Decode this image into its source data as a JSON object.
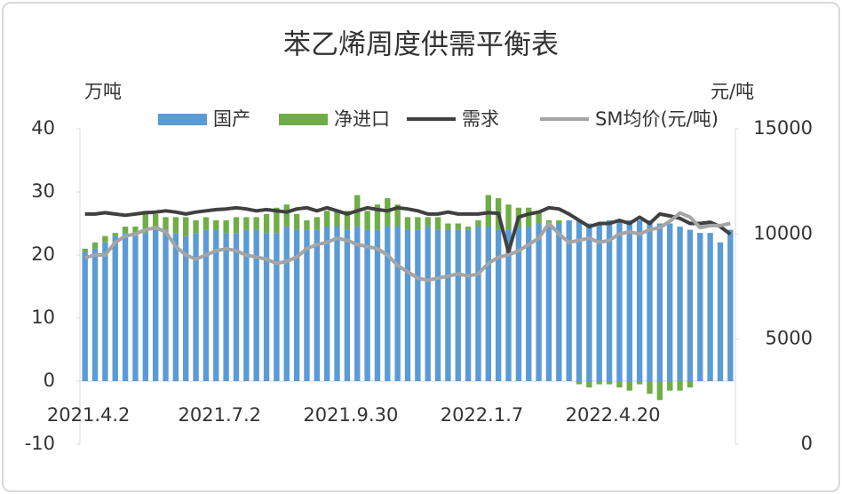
{
  "chart_data": {
    "type": "bar",
    "title": "苯乙烯周度供需平衡表",
    "y_label": "万吨",
    "y2_label": "元/吨",
    "categories": [
      "2021.4.2",
      null,
      null,
      null,
      null,
      null,
      null,
      null,
      null,
      null,
      null,
      null,
      null,
      "2021.7.2",
      null,
      null,
      null,
      null,
      null,
      null,
      null,
      null,
      null,
      null,
      null,
      null,
      "2021.9.30",
      null,
      null,
      null,
      null,
      null,
      null,
      null,
      null,
      null,
      null,
      null,
      null,
      "2022.1.7",
      null,
      null,
      null,
      null,
      null,
      null,
      null,
      null,
      null,
      null,
      null,
      null,
      "2022.4.20",
      null,
      null,
      null,
      null,
      null,
      null,
      null,
      null,
      null,
      null,
      null,
      null
    ],
    "series": [
      {
        "name": "国产",
        "type": "bar",
        "color": "#5b9bd5",
        "values": [
          20.5,
          21,
          22,
          23,
          23.5,
          23,
          23.5,
          24,
          24,
          23.5,
          23,
          23.5,
          24,
          24,
          23.5,
          23.5,
          24,
          24,
          23.5,
          23.5,
          24.5,
          24,
          24,
          24,
          24.5,
          24.5,
          24,
          24.5,
          24,
          24,
          24.5,
          24.5,
          24,
          24,
          24.5,
          24,
          24,
          24,
          24,
          24.5,
          24.5,
          24,
          24,
          24.5,
          24.5,
          25,
          24.5,
          25,
          25.5,
          25.5,
          25,
          25,
          25.5,
          25.5,
          25.5,
          25.5,
          25.5,
          25,
          25,
          24.5,
          24,
          23.5,
          23.5,
          22,
          24
        ]
      },
      {
        "name": "净进口",
        "type": "bar",
        "color": "#70ad47",
        "values": [
          0.5,
          1,
          1,
          0.5,
          1,
          1.5,
          3.5,
          2.5,
          2,
          2.5,
          3,
          2,
          2,
          1.5,
          2,
          2.5,
          2,
          2,
          3,
          4,
          3.5,
          2.5,
          1.5,
          2,
          2.5,
          2.5,
          3,
          5,
          3,
          4,
          4.5,
          3.5,
          2,
          2,
          1.5,
          2,
          1,
          1,
          0.5,
          1,
          5,
          5,
          4,
          3,
          3,
          2,
          1,
          0.5,
          0,
          -0.5,
          -1,
          -0.5,
          -0.5,
          -1,
          -1.5,
          -0.5,
          -2,
          -3,
          -1.5,
          -1.5,
          -1,
          0,
          0,
          0,
          0
        ]
      },
      {
        "name": "需求",
        "type": "line",
        "color": "#404040",
        "values": [
          26.5,
          26.5,
          26.7,
          26.5,
          26.3,
          26.5,
          26.7,
          26.8,
          27,
          26.8,
          26.5,
          26.8,
          27,
          27.2,
          27.3,
          27.5,
          27.3,
          27,
          27.2,
          27,
          26.8,
          27.3,
          27.5,
          27,
          27.5,
          27,
          26.5,
          27,
          27.5,
          27.2,
          27,
          27.5,
          27.3,
          27,
          26.5,
          26.5,
          26.8,
          26.5,
          26.5,
          26.5,
          26.7,
          26.6,
          20.5,
          26,
          26.5,
          26.8,
          27.5,
          27.3,
          26.5,
          25.5,
          24.5,
          25,
          25,
          25.5,
          25,
          26,
          25,
          26.5,
          26.2,
          25.8,
          25,
          25,
          25.2,
          24.5,
          23.3
        ]
      },
      {
        "name": "SM均价(元/吨)",
        "type": "line",
        "axis": "y2",
        "color": "#a5a5a5",
        "values": [
          8870,
          9000,
          9000,
          9600,
          9900,
          10000,
          10200,
          10300,
          10100,
          9400,
          9000,
          8800,
          9000,
          9200,
          9300,
          9200,
          9000,
          8900,
          8800,
          8600,
          8700,
          8900,
          9300,
          9500,
          9600,
          9800,
          9700,
          9500,
          9400,
          9300,
          9000,
          8500,
          8200,
          7900,
          7800,
          7900,
          8000,
          8100,
          8000,
          8100,
          8600,
          8900,
          9000,
          9200,
          9500,
          9800,
          10500,
          10000,
          9600,
          9700,
          9800,
          9600,
          9700,
          10000,
          10100,
          10000,
          10200,
          10300,
          10600,
          11000,
          10800,
          10300,
          10400,
          10400,
          10500
        ]
      }
    ],
    "ylim": [
      -10,
      40
    ],
    "yticks": [
      -10,
      0,
      10,
      20,
      30,
      40
    ],
    "y2lim": [
      0,
      15000
    ],
    "y2ticks": [
      0,
      5000,
      10000,
      15000
    ]
  }
}
